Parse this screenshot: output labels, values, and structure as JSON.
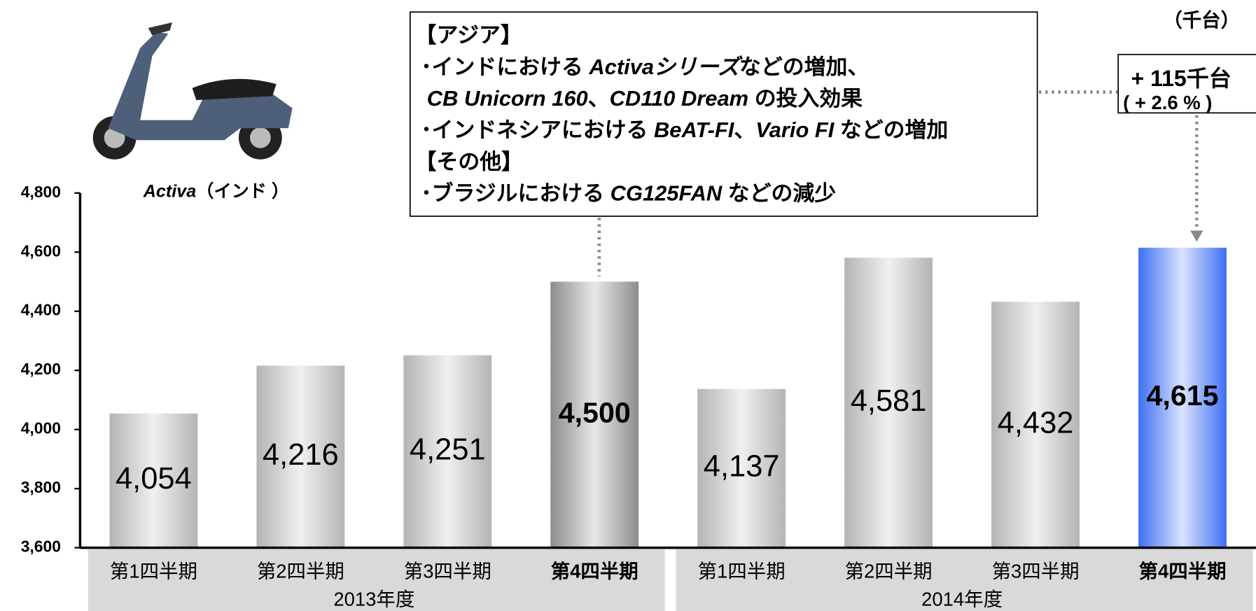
{
  "chart_data": {
    "type": "bar",
    "unit_label": "（千台）",
    "categories": [
      "第1四半期",
      "第2四半期",
      "第3四半期",
      "第4四半期",
      "第1四半期",
      "第2四半期",
      "第3四半期",
      "第4四半期"
    ],
    "groups": [
      {
        "label": "2013年度",
        "span": [
          0,
          3
        ]
      },
      {
        "label": "2014年度",
        "span": [
          4,
          7
        ]
      }
    ],
    "values": [
      4054,
      4216,
      4251,
      4500,
      4137,
      4581,
      4432,
      4615
    ],
    "value_labels": [
      "4,054",
      "4,216",
      "4,251",
      "4,500",
      "4,137",
      "4,581",
      "4,432",
      "4,615"
    ],
    "colors": [
      "#b4b4b4",
      "#b4b4b4",
      "#b4b4b4",
      "#8c8c8c",
      "#b4b4b4",
      "#b4b4b4",
      "#b4b4b4",
      "#3f6ff5"
    ],
    "highlight": [
      3,
      7
    ],
    "ylim": [
      3600,
      4800
    ],
    "yticks": [
      {
        "value": 3600,
        "label": "3,600"
      },
      {
        "value": 3800,
        "label": "3,800"
      },
      {
        "value": 4000,
        "label": "4,000"
      },
      {
        "value": 4200,
        "label": "4,200"
      },
      {
        "value": 4400,
        "label": "4,400"
      },
      {
        "value": 4600,
        "label": "4,600"
      },
      {
        "value": 4800,
        "label": "4,800"
      }
    ],
    "image_caption": [
      {
        "text": "Activa",
        "italic": true
      },
      {
        "text": "（インド ）",
        "italic": false
      }
    ],
    "note": {
      "lines": [
        [
          {
            "text": "【アジア】",
            "italic": false
          }
        ],
        [
          {
            "text": " ･インドにおける ",
            "italic": false
          },
          {
            "text": "Activaシリーズ",
            "italic": true
          },
          {
            "text": "などの増加、",
            "italic": false
          }
        ],
        [
          {
            "text": "  CB Unicorn 160",
            "italic": true
          },
          {
            "text": "、",
            "italic": false
          },
          {
            "text": "CD110 Dream ",
            "italic": true
          },
          {
            "text": "の投入効果",
            "italic": false
          }
        ],
        [
          {
            "text": " ･インドネシアにおける ",
            "italic": false
          },
          {
            "text": "BeAT-FI",
            "italic": true
          },
          {
            "text": "、",
            "italic": false
          },
          {
            "text": "Vario FI ",
            "italic": true
          },
          {
            "text": "などの増加",
            "italic": false
          }
        ],
        [
          {
            "text": "【その他】",
            "italic": false
          }
        ],
        [
          {
            "text": " ･ブラジルにおける ",
            "italic": false
          },
          {
            "text": "CG125FAN ",
            "italic": true
          },
          {
            "text": "などの減少",
            "italic": false
          }
        ]
      ]
    },
    "change": {
      "amount": "+ 115千台",
      "percent": "( + 2.6 % )"
    }
  }
}
